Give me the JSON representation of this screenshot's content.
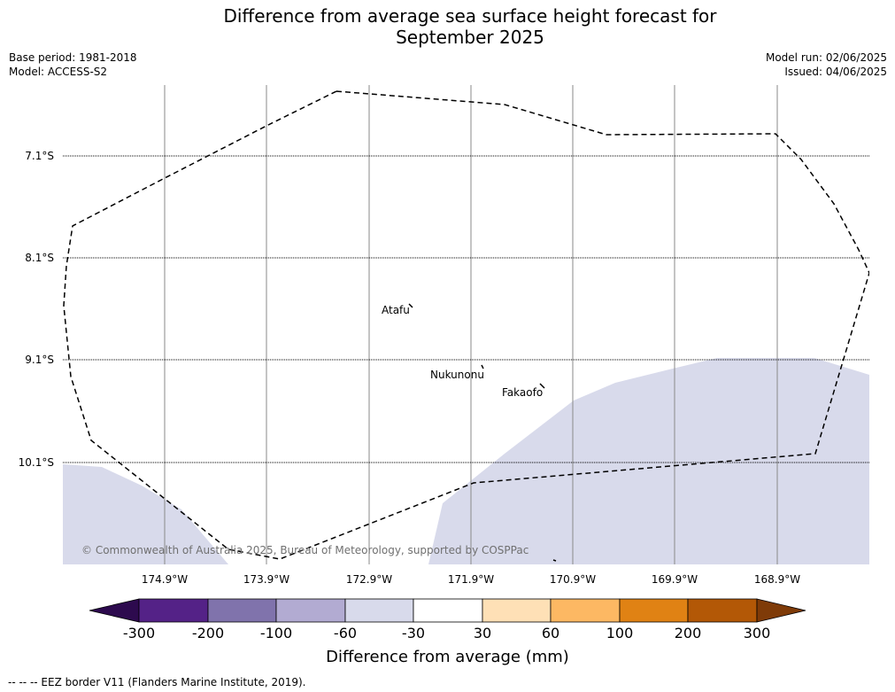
{
  "title_line1": "Difference from average sea surface height forecast for",
  "title_line2": "September 2025",
  "meta_left": {
    "base_period": "Base period: 1981-2018",
    "model": "Model: ACCESS-S2"
  },
  "meta_right": {
    "model_run": "Model run: 02/06/2025",
    "issued": "Issued: 04/06/2025"
  },
  "credit": "© Commonwealth of Australia 2025, Bureau of Meteorology, supported by COSPPac",
  "map": {
    "lat_labels": [
      "7.1°S",
      "8.1°S",
      "9.1°S",
      "10.1°S"
    ],
    "lon_labels": [
      "174.9°W",
      "173.9°W",
      "172.9°W",
      "171.9°W",
      "170.9°W",
      "169.9°W",
      "168.9°W"
    ],
    "places": [
      {
        "name": "Atafu"
      },
      {
        "name": "Nukunonu"
      },
      {
        "name": "Fakaofo"
      }
    ],
    "anomaly_fill_color": "#d8d8e8",
    "anomaly_fill_range_mm": [
      -60,
      -30
    ]
  },
  "colorbar": {
    "title": "Difference from average (mm)",
    "ticks": [
      "-300",
      "-200",
      "-100",
      "-60",
      "-30",
      "30",
      "60",
      "100",
      "200",
      "300"
    ],
    "colors": [
      "#2d0a4e",
      "#542287",
      "#8073ac",
      "#b2abd2",
      "#d8daeb",
      "#ffffff",
      "#fee0b6",
      "#fdb863",
      "#e08214",
      "#b35806",
      "#7f3b08"
    ]
  },
  "legend": {
    "eez_line": "-- -- -- EEZ border V11 (Flanders Marine Institute, 2019)."
  }
}
